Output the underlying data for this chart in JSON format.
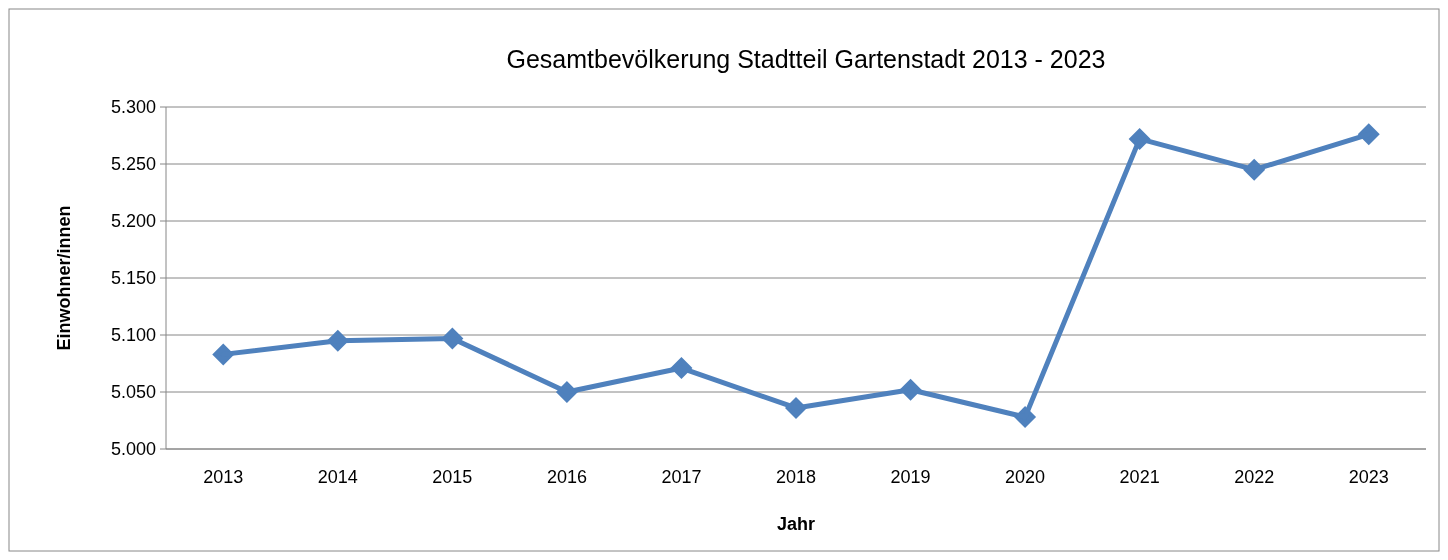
{
  "chart_data": {
    "type": "line",
    "title": "Gesamtbevölkerung Stadtteil Gartenstadt 2013 - 2023",
    "xlabel": "Jahr",
    "ylabel": "Einwohner/innen",
    "categories": [
      "2013",
      "2014",
      "2015",
      "2016",
      "2017",
      "2018",
      "2019",
      "2020",
      "2021",
      "2022",
      "2023"
    ],
    "series": [
      {
        "color": "#4f81bd",
        "values": [
          5083,
          5095,
          5097,
          5050,
          5071,
          5036,
          5052,
          5028,
          5272,
          5245,
          5276
        ]
      }
    ],
    "ylim": [
      5000,
      5300
    ],
    "yticks": [
      {
        "value": 5000,
        "label": "5.000"
      },
      {
        "value": 5050,
        "label": "5.050"
      },
      {
        "value": 5100,
        "label": "5.100"
      },
      {
        "value": 5150,
        "label": "5.150"
      },
      {
        "value": 5200,
        "label": "5.200"
      },
      {
        "value": 5250,
        "label": "5.250"
      },
      {
        "value": 5300,
        "label": "5.300"
      }
    ],
    "grid": "y",
    "marker": "diamond",
    "line_style": "solid"
  }
}
